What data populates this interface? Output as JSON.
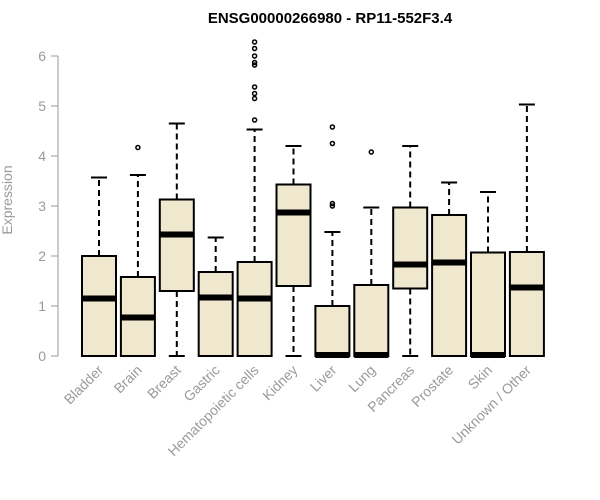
{
  "chart_data": {
    "type": "boxplot",
    "title": "ENSG00000266980 - RP11-552F3.4",
    "xlabel": "",
    "ylabel": "Expression",
    "ylim": [
      0,
      6.3
    ],
    "yticks": [
      "0",
      "1",
      "2",
      "3",
      "4",
      "5",
      "6"
    ],
    "grid": false,
    "categories": [
      "Bladder",
      "Brain",
      "Breast",
      "Gastric",
      "Hematopoietic cells",
      "Kidney",
      "Liver",
      "Lung",
      "Pancreas",
      "Prostate",
      "Skin",
      "Unknown / Other"
    ],
    "boxes": [
      {
        "name": "Bladder",
        "min": 0,
        "q1": 0,
        "median": 1.15,
        "q3": 2.0,
        "max": 3.57,
        "outliers": []
      },
      {
        "name": "Brain",
        "min": 0,
        "q1": 0,
        "median": 0.77,
        "q3": 1.58,
        "max": 3.62,
        "outliers": [
          4.17
        ]
      },
      {
        "name": "Breast",
        "min": 0,
        "q1": 1.3,
        "median": 2.43,
        "q3": 3.13,
        "max": 4.65,
        "outliers": []
      },
      {
        "name": "Gastric",
        "min": 0,
        "q1": 0,
        "median": 1.17,
        "q3": 1.68,
        "max": 2.37,
        "outliers": []
      },
      {
        "name": "Hematopoietic cells",
        "min": 0,
        "q1": 0,
        "median": 1.15,
        "q3": 1.88,
        "max": 4.53,
        "outliers": [
          4.72,
          5.15,
          5.25,
          5.38,
          5.82,
          5.87,
          6.0,
          6.15,
          6.28
        ]
      },
      {
        "name": "Kidney",
        "min": 0,
        "q1": 1.4,
        "median": 2.87,
        "q3": 3.43,
        "max": 4.2,
        "outliers": []
      },
      {
        "name": "Liver",
        "min": 0,
        "q1": 0,
        "median": 0.02,
        "q3": 1.0,
        "max": 2.48,
        "outliers": [
          3.0,
          3.05,
          4.25,
          4.58
        ]
      },
      {
        "name": "Lung",
        "min": 0,
        "q1": 0,
        "median": 0.02,
        "q3": 1.42,
        "max": 2.97,
        "outliers": [
          4.08
        ]
      },
      {
        "name": "Pancreas",
        "min": 0,
        "q1": 1.35,
        "median": 1.83,
        "q3": 2.97,
        "max": 4.2,
        "outliers": []
      },
      {
        "name": "Prostate",
        "min": 0,
        "q1": 0,
        "median": 1.87,
        "q3": 2.82,
        "max": 3.47,
        "outliers": []
      },
      {
        "name": "Skin",
        "min": 0,
        "q1": 0,
        "median": 0.02,
        "q3": 2.07,
        "max": 3.28,
        "outliers": []
      },
      {
        "name": "Unknown / Other",
        "min": 0,
        "q1": 0,
        "median": 1.37,
        "q3": 2.08,
        "max": 5.03,
        "outliers": []
      }
    ],
    "colors": {
      "box_fill": "#efe8cf",
      "stroke": "#000000",
      "axis_text": "#9a9a9a",
      "title": "#000000"
    }
  }
}
